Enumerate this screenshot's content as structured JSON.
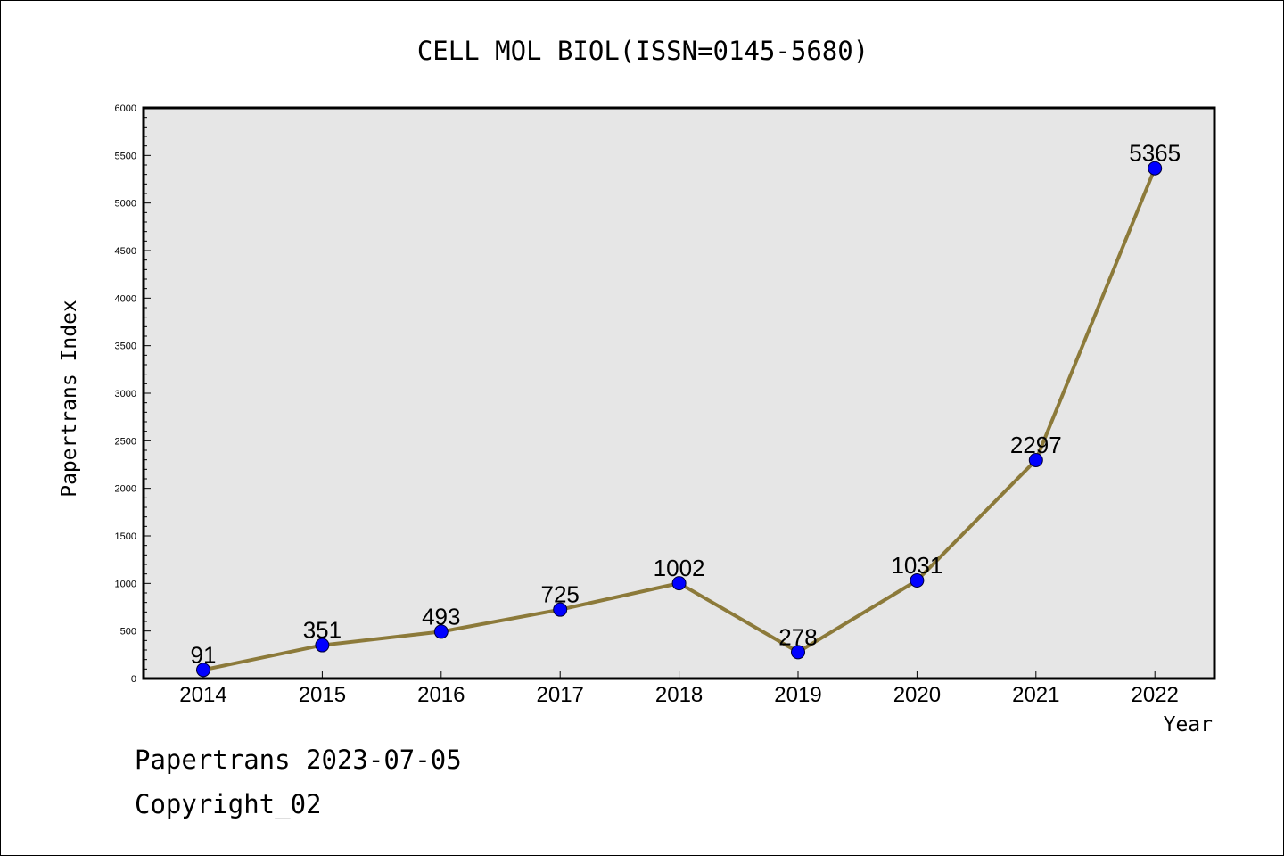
{
  "chart_data": {
    "type": "line",
    "title": "CELL MOL BIOL(ISSN=0145-5680)",
    "xlabel": "Year",
    "ylabel": "Papertrans Index",
    "categories": [
      "2014",
      "2015",
      "2016",
      "2017",
      "2018",
      "2019",
      "2020",
      "2021",
      "2022"
    ],
    "series": [
      {
        "values": [
          91,
          351,
          493,
          725,
          1002,
          278,
          1031,
          2297,
          5365
        ]
      }
    ],
    "data_labels": [
      "91",
      "351",
      "493",
      "725",
      "1002",
      "278",
      "1031",
      "2297",
      "5365"
    ],
    "ylim": [
      0,
      6000
    ],
    "yticks": [
      "0",
      "500",
      "1000",
      "1500",
      "2000",
      "2500",
      "3000",
      "3500",
      "4000",
      "4500",
      "5000",
      "5500",
      "6000"
    ],
    "ytick_values": [
      0,
      500,
      1000,
      1500,
      2000,
      2500,
      3000,
      3500,
      4000,
      4500,
      5000,
      5500,
      6000
    ],
    "grid": false,
    "legend": "none",
    "colors": {
      "line": "#8c7a3a",
      "marker": "#0000ff",
      "plot_background": "#e6e6e6"
    }
  },
  "footer": {
    "date_line": "Papertrans 2023-07-05",
    "copyright": "Copyright_02"
  }
}
